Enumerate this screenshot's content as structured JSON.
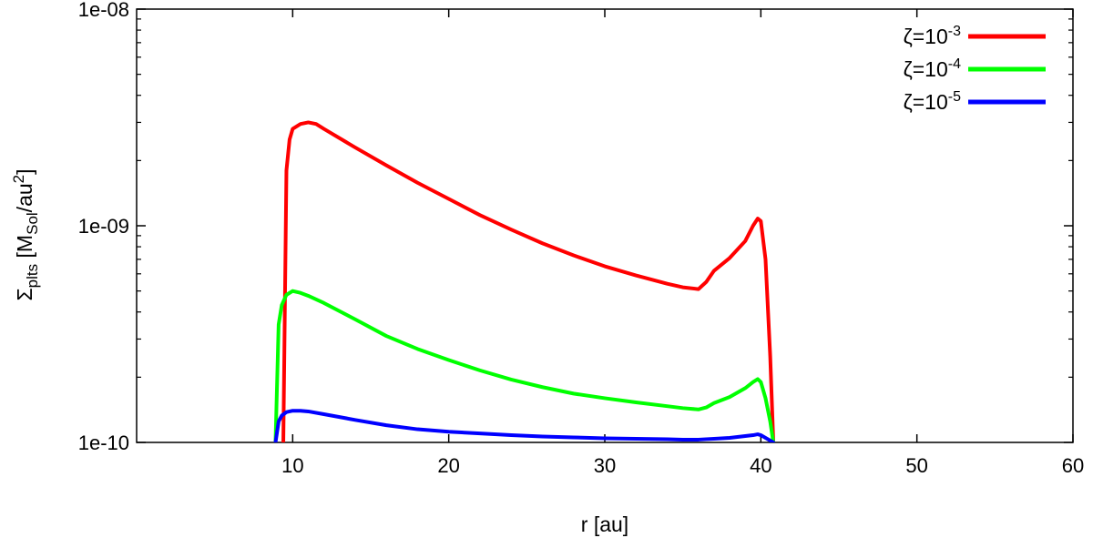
{
  "chart_data": {
    "type": "line",
    "title": "",
    "xlabel": "r [au]",
    "ylabel": "Σplts [MSol/au2]",
    "ylabel_parts": {
      "base": "Σ",
      "base_sub": "plts",
      "open": " [M",
      "unit_sub": "Sol",
      "mid": "/au",
      "unit_sup": "2",
      "close": "]"
    },
    "xlim": [
      0,
      60
    ],
    "ylim": [
      1e-10,
      1e-08
    ],
    "yscale": "log",
    "x_ticks": [
      10,
      20,
      30,
      40,
      50,
      60
    ],
    "x_tick_labels": [
      "10",
      "20",
      "30",
      "40",
      "50",
      "60"
    ],
    "y_ticks": [
      1e-10,
      1e-09,
      1e-08
    ],
    "y_tick_labels": [
      "1e-10",
      "1e-09",
      "1e-08"
    ],
    "grid": false,
    "legend_position": "top-right",
    "series": [
      {
        "name": "ζ=10-3",
        "legend": {
          "base": "ζ=10",
          "sup": "-3"
        },
        "color": "#ff0000",
        "x": [
          9.4,
          9.6,
          9.8,
          10.0,
          10.5,
          11.0,
          11.5,
          12,
          14,
          16,
          18,
          20,
          22,
          24,
          26,
          28,
          30,
          32,
          34,
          35,
          36,
          36.5,
          37,
          38,
          39,
          39.5,
          39.8,
          40.0,
          40.3,
          40.6,
          40.8
        ],
        "y": [
          1e-10,
          1.8e-09,
          2.5e-09,
          2.8e-09,
          2.95e-09,
          3e-09,
          2.95e-09,
          2.8e-09,
          2.3e-09,
          1.9e-09,
          1.58e-09,
          1.33e-09,
          1.12e-09,
          9.6e-10,
          8.3e-10,
          7.3e-10,
          6.5e-10,
          5.9e-10,
          5.4e-10,
          5.2e-10,
          5.1e-10,
          5.5e-10,
          6.2e-10,
          7.1e-10,
          8.5e-10,
          1e-09,
          1.08e-09,
          1.05e-09,
          7e-10,
          2.5e-10,
          1e-10
        ]
      },
      {
        "name": "ζ=10-4",
        "legend": {
          "base": "ζ=10",
          "sup": "-4"
        },
        "color": "#00ff00",
        "x": [
          8.9,
          9.1,
          9.3,
          9.6,
          10.0,
          10.5,
          11.0,
          12,
          14,
          16,
          18,
          20,
          22,
          24,
          26,
          28,
          30,
          32,
          34,
          35,
          36,
          36.5,
          37,
          38,
          39,
          39.5,
          39.8,
          40.0,
          40.3,
          40.6,
          40.8
        ],
        "y": [
          1e-10,
          3.5e-10,
          4.3e-10,
          4.8e-10,
          5e-10,
          4.9e-10,
          4.75e-10,
          4.4e-10,
          3.7e-10,
          3.1e-10,
          2.7e-10,
          2.4e-10,
          2.15e-10,
          1.95e-10,
          1.8e-10,
          1.68e-10,
          1.6e-10,
          1.53e-10,
          1.47e-10,
          1.44e-10,
          1.42e-10,
          1.45e-10,
          1.52e-10,
          1.62e-10,
          1.78e-10,
          1.9e-10,
          1.96e-10,
          1.9e-10,
          1.6e-10,
          1.25e-10,
          1e-10
        ]
      },
      {
        "name": "ζ=10-5",
        "legend": {
          "base": "ζ=10",
          "sup": "-5"
        },
        "color": "#0000ff",
        "x": [
          8.9,
          9.1,
          9.3,
          9.6,
          10.0,
          10.5,
          11.0,
          12,
          14,
          16,
          18,
          20,
          22,
          24,
          26,
          28,
          30,
          32,
          34,
          35,
          36,
          36.5,
          37,
          38,
          39,
          39.5,
          39.8,
          40.0,
          40.3,
          40.6,
          40.8
        ],
        "y": [
          1e-10,
          1.25e-10,
          1.33e-10,
          1.38e-10,
          1.4e-10,
          1.4e-10,
          1.39e-10,
          1.35e-10,
          1.27e-10,
          1.2e-10,
          1.15e-10,
          1.12e-10,
          1.1e-10,
          1.08e-10,
          1.065e-10,
          1.055e-10,
          1.045e-10,
          1.04e-10,
          1.035e-10,
          1.03e-10,
          1.03e-10,
          1.035e-10,
          1.04e-10,
          1.05e-10,
          1.07e-10,
          1.08e-10,
          1.09e-10,
          1.08e-10,
          1.05e-10,
          1.02e-10,
          1e-10
        ]
      }
    ]
  }
}
